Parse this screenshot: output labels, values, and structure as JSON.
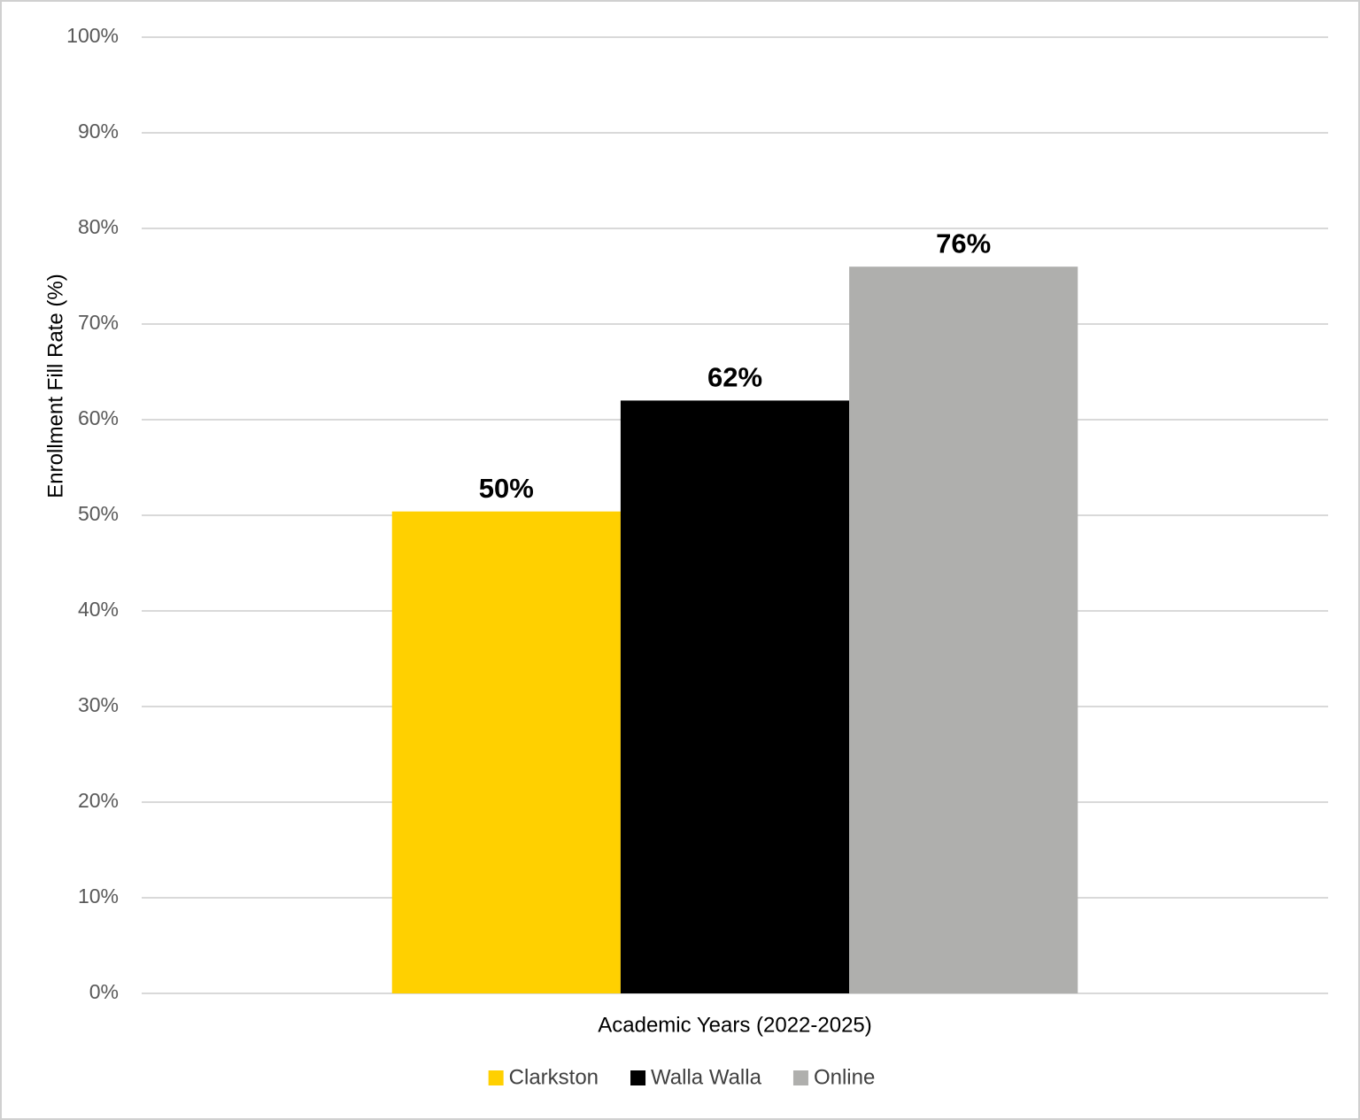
{
  "chart_data": {
    "type": "bar",
    "x_label": "Academic Years (2022-2025)",
    "y_label": "Enrollment Fill Rate (%)",
    "categories": [
      null
    ],
    "series": [
      {
        "name": "Clarkston",
        "color": "#ffd000",
        "values": [
          50.4
        ],
        "value_labels": [
          "50%"
        ]
      },
      {
        "name": "Walla Walla",
        "color": "#000000",
        "values": [
          62
        ],
        "value_labels": [
          "62%"
        ]
      },
      {
        "name": "Online",
        "color": "#afafad",
        "values": [
          76
        ],
        "value_labels": [
          "76%"
        ]
      }
    ],
    "ylim": [
      0,
      100
    ],
    "yticks": [
      {
        "value": 0,
        "label": "0%"
      },
      {
        "value": 10,
        "label": "10%"
      },
      {
        "value": 20,
        "label": "20%"
      },
      {
        "value": 30,
        "label": "30%"
      },
      {
        "value": 40,
        "label": "40%"
      },
      {
        "value": 50,
        "label": "50%"
      },
      {
        "value": 60,
        "label": "60%"
      },
      {
        "value": 70,
        "label": "70%"
      },
      {
        "value": 80,
        "label": "80%"
      },
      {
        "value": 90,
        "label": "90%"
      },
      {
        "value": 100,
        "label": "100%"
      }
    ],
    "grid": true,
    "legend": "bottom"
  }
}
